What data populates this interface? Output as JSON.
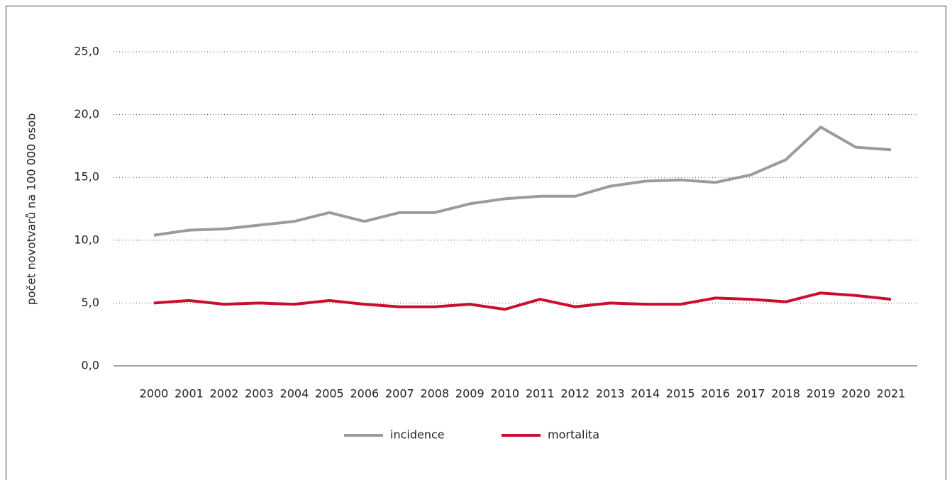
{
  "chart_data": {
    "type": "line",
    "y_label": "počet novotvarů na 100 000 osob",
    "categories": [
      "2000",
      "2001",
      "2002",
      "2003",
      "2004",
      "2005",
      "2006",
      "2007",
      "2008",
      "2009",
      "2010",
      "2011",
      "2012",
      "2013",
      "2014",
      "2015",
      "2016",
      "2017",
      "2018",
      "2019",
      "2020",
      "2021"
    ],
    "series": [
      {
        "name": "incidence",
        "color": "#9b9b9b",
        "values": [
          10.4,
          10.8,
          10.9,
          11.2,
          11.5,
          12.2,
          11.5,
          12.2,
          12.2,
          12.9,
          13.3,
          13.5,
          13.5,
          14.3,
          14.7,
          14.8,
          14.6,
          15.2,
          16.4,
          19.0,
          17.4,
          17.2
        ]
      },
      {
        "name": "mortalita",
        "color": "#c8102e",
        "values": [
          5.0,
          5.2,
          4.9,
          5.0,
          4.9,
          5.2,
          4.9,
          4.7,
          4.7,
          4.9,
          4.5,
          5.3,
          4.7,
          5.0,
          4.9,
          4.9,
          5.4,
          5.3,
          5.1,
          5.8,
          5.6,
          5.3
        ]
      }
    ],
    "ylim": [
      0,
      25
    ],
    "yticks": [
      {
        "value": 0,
        "label": "0,0"
      },
      {
        "value": 5,
        "label": "5,0"
      },
      {
        "value": 10,
        "label": "10,0"
      },
      {
        "value": 15,
        "label": "15,0"
      },
      {
        "value": 20,
        "label": "20,0"
      },
      {
        "value": 25,
        "label": "25,0"
      }
    ],
    "grid": true,
    "legend": "bottom"
  }
}
